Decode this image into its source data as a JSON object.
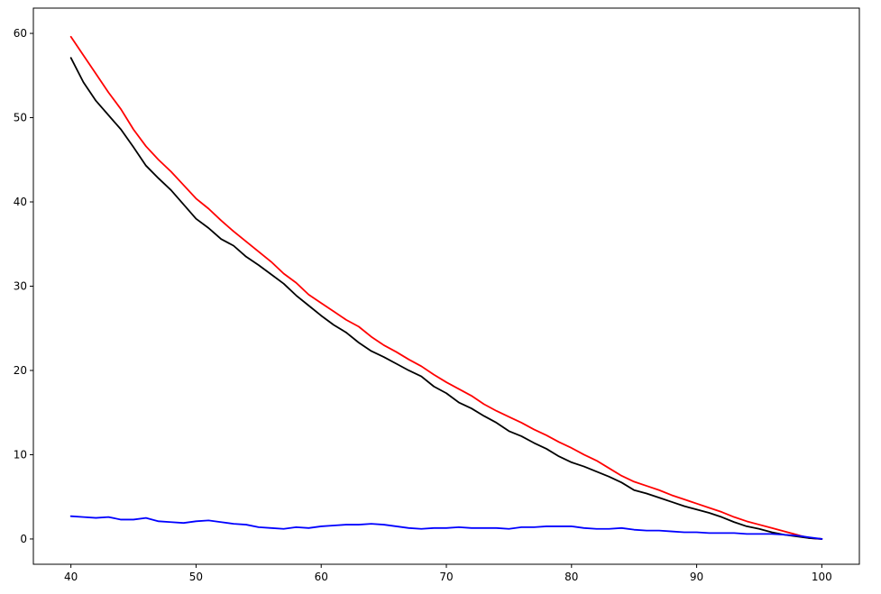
{
  "chart_data": {
    "type": "line",
    "title": "",
    "xlabel": "",
    "ylabel": "",
    "xlim": [
      37,
      103
    ],
    "ylim": [
      -3,
      63
    ],
    "grid": false,
    "legend": "none",
    "x_ticks": [
      40,
      50,
      60,
      70,
      80,
      90,
      100
    ],
    "x_tick_labels": [
      "40",
      "50",
      "60",
      "70",
      "80",
      "90",
      "100"
    ],
    "y_ticks": [
      0,
      10,
      20,
      30,
      40,
      50,
      60
    ],
    "y_tick_labels": [
      "0",
      "10",
      "20",
      "30",
      "40",
      "50",
      "60"
    ],
    "series": [
      {
        "color": "#ff0000",
        "x": [
          40,
          41,
          42,
          43,
          44,
          45,
          46,
          47,
          48,
          49,
          50,
          51,
          52,
          53,
          54,
          55,
          56,
          57,
          58,
          59,
          60,
          61,
          62,
          63,
          64,
          65,
          66,
          67,
          68,
          69,
          70,
          71,
          72,
          73,
          74,
          75,
          76,
          77,
          78,
          79,
          80,
          81,
          82,
          83,
          84,
          85,
          86,
          87,
          88,
          89,
          90,
          91,
          92,
          93,
          94,
          95,
          96,
          97,
          98,
          99,
          100
        ],
        "y": [
          59.6,
          57.4,
          55.2,
          53.0,
          51.0,
          48.6,
          46.6,
          45.0,
          43.6,
          42.0,
          40.4,
          39.2,
          37.8,
          36.5,
          35.3,
          34.1,
          32.9,
          31.5,
          30.4,
          29.0,
          28.0,
          27.0,
          26.0,
          25.2,
          24.0,
          23.0,
          22.2,
          21.3,
          20.5,
          19.5,
          18.6,
          17.8,
          17.0,
          16.0,
          15.2,
          14.5,
          13.8,
          13.0,
          12.3,
          11.5,
          10.8,
          10.0,
          9.3,
          8.4,
          7.5,
          6.8,
          6.3,
          5.8,
          5.2,
          4.7,
          4.2,
          3.7,
          3.2,
          2.6,
          2.1,
          1.7,
          1.3,
          0.9,
          0.5,
          0.1,
          0.0
        ]
      },
      {
        "color": "#000000",
        "x": [
          40,
          41,
          42,
          43,
          44,
          45,
          46,
          47,
          48,
          49,
          50,
          51,
          52,
          53,
          54,
          55,
          56,
          57,
          58,
          59,
          60,
          61,
          62,
          63,
          64,
          65,
          66,
          67,
          68,
          69,
          70,
          71,
          72,
          73,
          74,
          75,
          76,
          77,
          78,
          79,
          80,
          81,
          82,
          83,
          84,
          85,
          86,
          87,
          88,
          89,
          90,
          91,
          92,
          93,
          94,
          95,
          96,
          97,
          98,
          99,
          100
        ],
        "y": [
          57.1,
          54.2,
          52.0,
          50.3,
          48.6,
          46.5,
          44.3,
          42.8,
          41.4,
          39.7,
          38.0,
          36.9,
          35.6,
          34.8,
          33.5,
          32.5,
          31.4,
          30.3,
          28.9,
          27.7,
          26.5,
          25.4,
          24.5,
          23.3,
          22.3,
          21.6,
          20.8,
          20.0,
          19.3,
          18.1,
          17.3,
          16.2,
          15.5,
          14.6,
          13.8,
          12.8,
          12.2,
          11.4,
          10.7,
          9.8,
          9.1,
          8.6,
          8.0,
          7.4,
          6.7,
          5.8,
          5.4,
          4.9,
          4.4,
          3.9,
          3.5,
          3.1,
          2.6,
          2.0,
          1.5,
          1.2,
          0.8,
          0.5,
          0.3,
          0.1,
          0.0
        ]
      },
      {
        "color": "#0000ff",
        "x": [
          40,
          41,
          42,
          43,
          44,
          45,
          46,
          47,
          48,
          49,
          50,
          51,
          52,
          53,
          54,
          55,
          56,
          57,
          58,
          59,
          60,
          61,
          62,
          63,
          64,
          65,
          66,
          67,
          68,
          69,
          70,
          71,
          72,
          73,
          74,
          75,
          76,
          77,
          78,
          79,
          80,
          81,
          82,
          83,
          84,
          85,
          86,
          87,
          88,
          89,
          90,
          91,
          92,
          93,
          94,
          95,
          96,
          97,
          98,
          99,
          100
        ],
        "y": [
          2.7,
          2.6,
          2.5,
          2.6,
          2.3,
          2.3,
          2.5,
          2.1,
          2.0,
          1.9,
          2.1,
          2.2,
          2.0,
          1.8,
          1.7,
          1.4,
          1.3,
          1.2,
          1.4,
          1.3,
          1.5,
          1.6,
          1.7,
          1.7,
          1.8,
          1.7,
          1.5,
          1.3,
          1.2,
          1.3,
          1.3,
          1.4,
          1.3,
          1.3,
          1.3,
          1.2,
          1.4,
          1.4,
          1.5,
          1.5,
          1.5,
          1.3,
          1.2,
          1.2,
          1.3,
          1.1,
          1.0,
          1.0,
          0.9,
          0.8,
          0.8,
          0.7,
          0.7,
          0.7,
          0.6,
          0.6,
          0.6,
          0.5,
          0.4,
          0.2,
          0.0
        ]
      }
    ]
  }
}
